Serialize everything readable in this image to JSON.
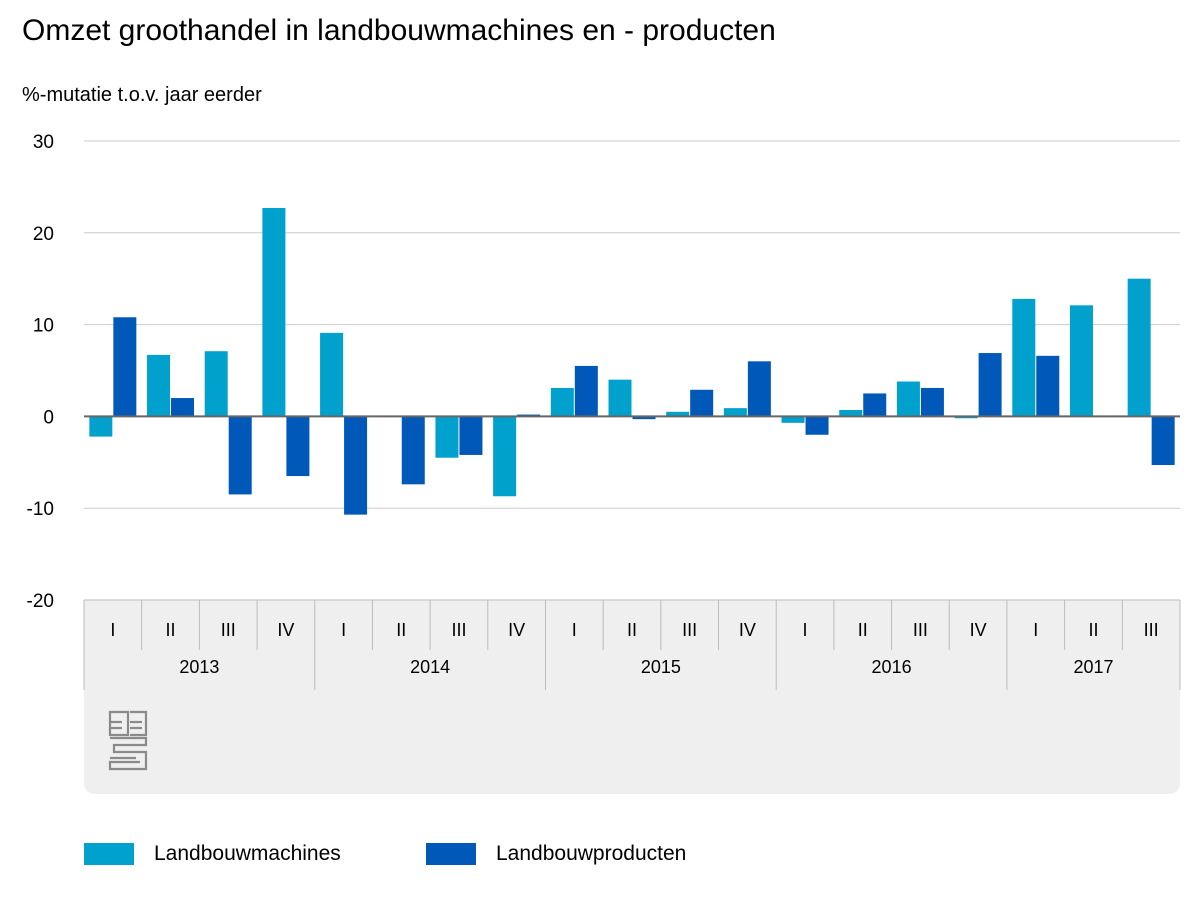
{
  "title": "Omzet groothandel in landbouwmachines en - producten",
  "subtitle": "%-mutatie t.o.v. jaar eerder",
  "colors": {
    "machines": "#00a1cd",
    "products": "#0058b8",
    "grid": "#cccccc",
    "zero_line": "#666666",
    "axis_panel": "#efefef",
    "divider": "#bbbbbb",
    "logo": "#8a8a8a"
  },
  "logo": {
    "icon": "cbs-logo-icon"
  },
  "chart_data": {
    "type": "bar",
    "title": "Omzet groothandel in landbouwmachines en - producten",
    "ylabel": "%-mutatie t.o.v. jaar eerder",
    "ylim": [
      -20,
      30
    ],
    "yticks": [
      30,
      20,
      10,
      0,
      -10,
      -20
    ],
    "grid": true,
    "legend_position": "bottom-left",
    "categories": [
      "I",
      "II",
      "III",
      "IV",
      "I",
      "II",
      "III",
      "IV",
      "I",
      "II",
      "III",
      "IV",
      "I",
      "II",
      "III",
      "IV",
      "I",
      "II",
      "III"
    ],
    "groups": [
      {
        "label": "2013",
        "count": 4
      },
      {
        "label": "2014",
        "count": 4
      },
      {
        "label": "2015",
        "count": 4
      },
      {
        "label": "2016",
        "count": 4
      },
      {
        "label": "2017",
        "count": 3
      }
    ],
    "series": [
      {
        "name": "Landbouwmachines",
        "color": "#00a1cd",
        "values": [
          -2.2,
          6.7,
          7.1,
          22.7,
          9.1,
          0.0,
          -4.5,
          -8.7,
          3.1,
          4.0,
          0.5,
          0.9,
          -0.7,
          0.7,
          3.8,
          -0.2,
          12.8,
          12.1,
          15.0
        ]
      },
      {
        "name": "Landbouwproducten",
        "color": "#0058b8",
        "values": [
          10.8,
          2.0,
          -8.5,
          -6.5,
          -10.7,
          -7.4,
          -4.2,
          0.2,
          5.5,
          -0.3,
          2.9,
          6.0,
          -2.0,
          2.5,
          3.1,
          6.9,
          6.6,
          0.0,
          -5.3
        ]
      }
    ]
  }
}
